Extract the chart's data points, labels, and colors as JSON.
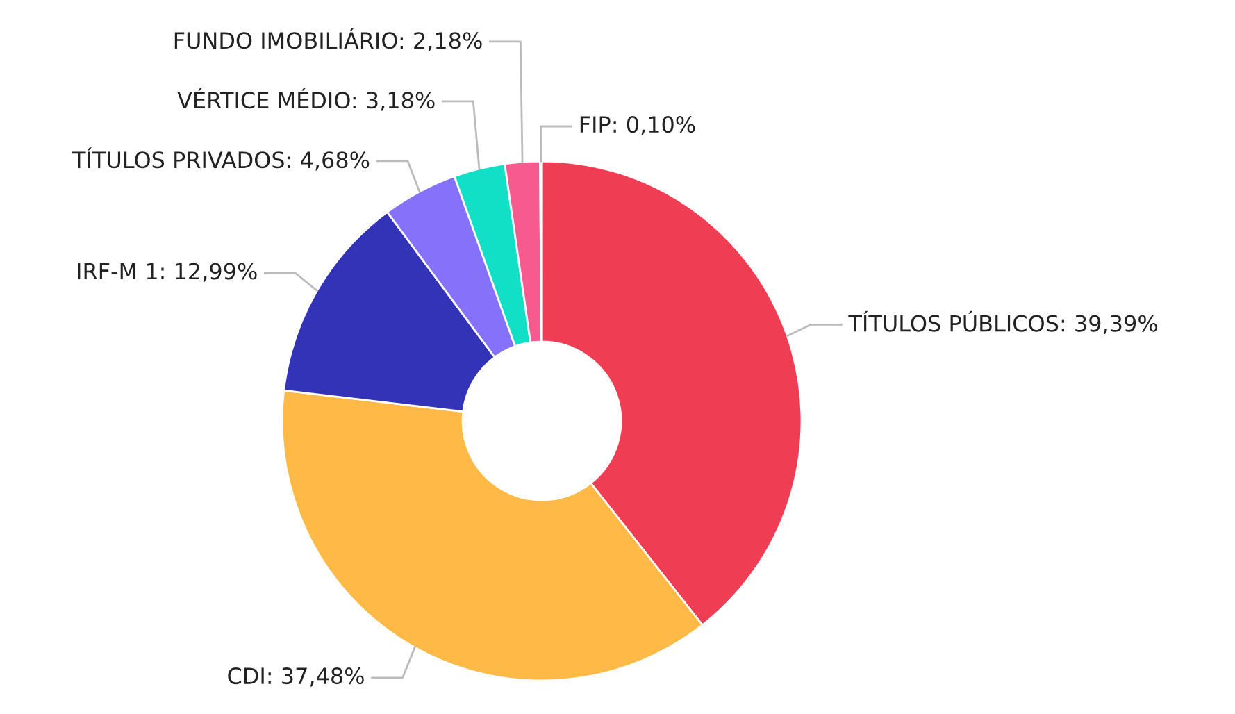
{
  "chart_data": {
    "type": "donut",
    "categories": [
      "TÍTULOS PÚBLICOS",
      "CDI",
      "IRF-M 1",
      "TÍTULOS PRIVADOS",
      "VÉRTICE MÉDIO",
      "FUNDO IMOBILIÁRIO",
      "FIP"
    ],
    "values": [
      39.39,
      37.48,
      12.99,
      4.68,
      3.18,
      2.18,
      0.1
    ],
    "colors": [
      "#ef3d53",
      "#ffb946",
      "#3333b8",
      "#8671fa",
      "#12e0c6",
      "#f65a8e",
      "#c04fc9"
    ],
    "value_labels": [
      "39,39%",
      "37,48%",
      "12,99%",
      "4,68%",
      "3,18%",
      "2,18%",
      "0,10%"
    ]
  }
}
